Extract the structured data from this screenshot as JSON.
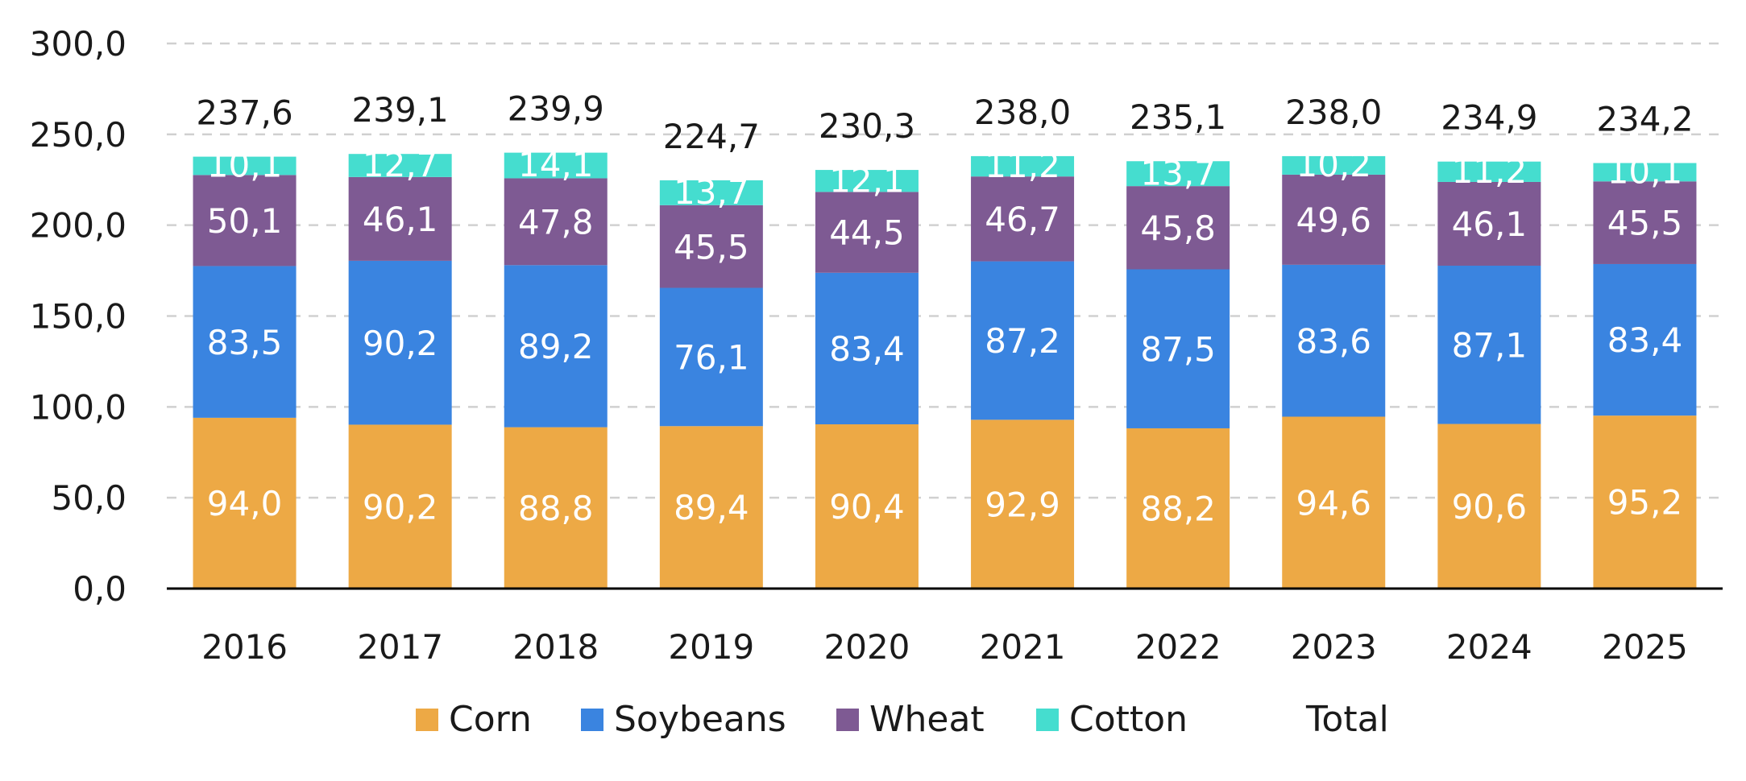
{
  "chart_data": {
    "type": "bar",
    "stacked": true,
    "categories": [
      "2016",
      "2017",
      "2018",
      "2019",
      "2020",
      "2021",
      "2022",
      "2023",
      "2024",
      "2025"
    ],
    "series": [
      {
        "name": "Corn",
        "color": "#EDA945",
        "values": [
          94.0,
          90.2,
          88.8,
          89.4,
          90.4,
          92.9,
          88.2,
          94.6,
          90.6,
          95.2
        ],
        "labels": [
          "94,0",
          "90,2",
          "88,8",
          "89,4",
          "90,4",
          "92,9",
          "88,2",
          "94,6",
          "90,6",
          "95,2"
        ]
      },
      {
        "name": "Soybeans",
        "color": "#3A84E0",
        "values": [
          83.5,
          90.2,
          89.2,
          76.1,
          83.4,
          87.2,
          87.5,
          83.6,
          87.1,
          83.4
        ],
        "labels": [
          "83,5",
          "90,2",
          "89,2",
          "76,1",
          "83,4",
          "87,2",
          "87,5",
          "83,6",
          "87,1",
          "83,4"
        ]
      },
      {
        "name": "Wheat",
        "color": "#7E5A93",
        "values": [
          50.1,
          46.1,
          47.8,
          45.5,
          44.5,
          46.7,
          45.8,
          49.6,
          46.1,
          45.5
        ],
        "labels": [
          "50,1",
          "46,1",
          "47,8",
          "45,5",
          "44,5",
          "46,7",
          "45,8",
          "49,6",
          "46,1",
          "45,5"
        ]
      },
      {
        "name": "Cotton",
        "color": "#45DDCF",
        "values": [
          10.1,
          12.7,
          14.1,
          13.7,
          12.1,
          11.2,
          13.7,
          10.2,
          11.2,
          10.1
        ],
        "labels": [
          "10,1",
          "12,7",
          "14,1",
          "13,7",
          "12,1",
          "11,2",
          "13,7",
          "10,2",
          "11,2",
          "10,1"
        ]
      }
    ],
    "total": {
      "name": "Total",
      "values": [
        237.6,
        239.1,
        239.9,
        224.7,
        230.3,
        238.0,
        235.1,
        238.0,
        234.9,
        234.2
      ],
      "labels": [
        "237,6",
        "239,1",
        "239,9",
        "224,7",
        "230,3",
        "238,0",
        "235,1",
        "238,0",
        "234,9",
        "234,2"
      ]
    },
    "ylim": [
      0,
      300
    ],
    "yticks": [
      "0,0",
      "50,0",
      "100,0",
      "150,0",
      "200,0",
      "250,0",
      "300,0"
    ],
    "grid": true,
    "legend_position": "bottom"
  }
}
